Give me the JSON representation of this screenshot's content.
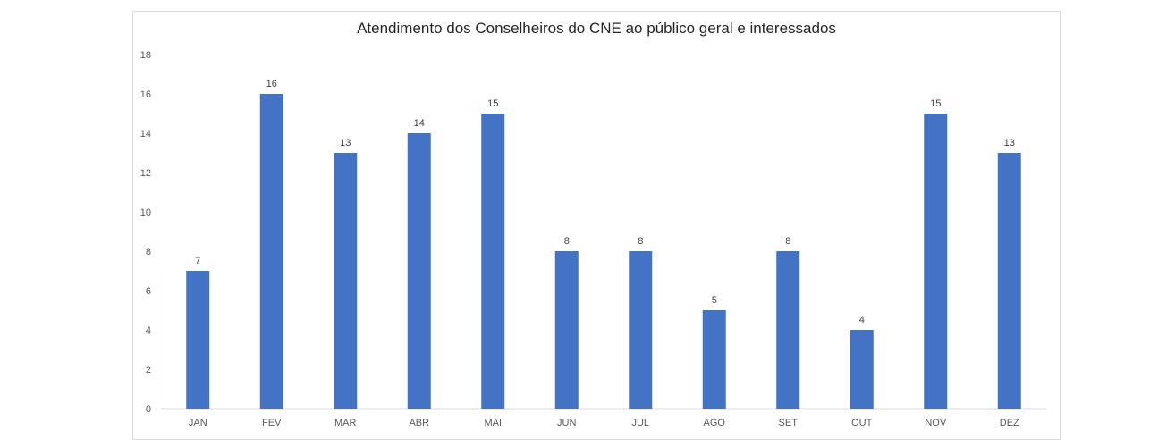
{
  "chart_data": {
    "type": "bar",
    "title": "Atendimento dos Conselheiros do CNE ao público geral e interessados",
    "xlabel": "",
    "ylabel": "",
    "categories": [
      "JAN",
      "FEV",
      "MAR",
      "ABR",
      "MAI",
      "JUN",
      "JUL",
      "AGO",
      "SET",
      "OUT",
      "NOV",
      "DEZ"
    ],
    "values": [
      7,
      16,
      13,
      14,
      15,
      8,
      8,
      5,
      8,
      4,
      15,
      13
    ],
    "ylim": [
      0,
      18
    ],
    "yticks": [
      0,
      2,
      4,
      6,
      8,
      10,
      12,
      14,
      16,
      18
    ],
    "grid": false,
    "legend": "none",
    "data_labels": true,
    "bar_color": "#4472C4",
    "axis_color": "#d9d9d9",
    "text_color": "#595959"
  }
}
